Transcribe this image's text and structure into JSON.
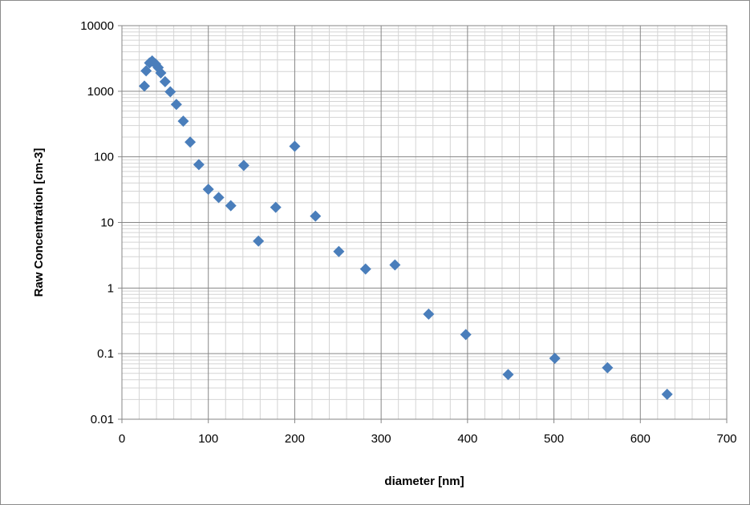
{
  "chart_data": {
    "type": "scatter",
    "title": "",
    "xlabel": "diameter [nm]",
    "ylabel": "Raw Concentration [cm-3]",
    "xlim": [
      0,
      700
    ],
    "ylim": [
      0.01,
      10000
    ],
    "yscale": "log",
    "grid": true,
    "legend": "none",
    "x_ticks": [
      0,
      100,
      200,
      300,
      400,
      500,
      600,
      700
    ],
    "x_tick_labels": [
      "0",
      "100",
      "200",
      "300",
      "400",
      "500",
      "600",
      "700"
    ],
    "y_ticks": [
      0.01,
      0.1,
      1,
      10,
      100,
      1000,
      10000
    ],
    "y_tick_labels": [
      "0.01",
      "0.1",
      "1",
      "10",
      "100",
      "1000",
      "10000"
    ],
    "marker": "diamond",
    "marker_color": "#4a7ebb",
    "series": [
      {
        "points": [
          [
            26,
            1200
          ],
          [
            28,
            2050
          ],
          [
            32,
            2700
          ],
          [
            35,
            2900
          ],
          [
            39,
            2600
          ],
          [
            42,
            2300
          ],
          [
            45,
            1900
          ],
          [
            50,
            1400
          ],
          [
            56,
            980
          ],
          [
            63,
            630
          ],
          [
            71,
            350
          ],
          [
            79,
            168
          ],
          [
            89,
            76
          ],
          [
            100,
            32
          ],
          [
            112,
            24
          ],
          [
            126,
            18
          ],
          [
            141,
            74
          ],
          [
            158,
            5.2
          ],
          [
            178,
            17
          ],
          [
            200,
            145
          ],
          [
            224,
            12.5
          ],
          [
            251,
            3.6
          ],
          [
            282,
            1.95
          ],
          [
            316,
            2.25
          ],
          [
            355,
            0.4
          ],
          [
            398,
            0.195
          ],
          [
            447,
            0.048
          ],
          [
            501,
            0.085
          ],
          [
            562,
            0.061
          ],
          [
            631,
            0.024
          ]
        ]
      }
    ]
  }
}
